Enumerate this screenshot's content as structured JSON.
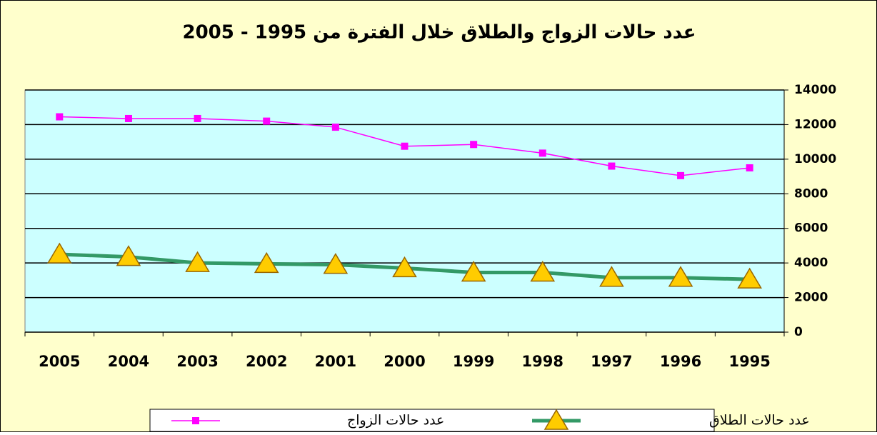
{
  "chart_data": {
    "type": "line",
    "title": "عدد حالات الزواج والطلاق خلال الفترة من 1995 - 2005",
    "categories": [
      "2005",
      "2004",
      "2003",
      "2002",
      "2001",
      "2000",
      "1999",
      "1998",
      "1997",
      "1996",
      "1995"
    ],
    "series": [
      {
        "name": "عدد حالات الزواج",
        "color": "#ff00ff",
        "marker": "square",
        "values": [
          12450,
          12350,
          12350,
          12200,
          11850,
          10750,
          10850,
          10350,
          9600,
          9050,
          9500
        ]
      },
      {
        "name": "عدد حالات الطلاق",
        "color": "#339966",
        "marker": "triangle",
        "values": [
          4500,
          4350,
          4000,
          3950,
          3900,
          3700,
          3450,
          3450,
          3150,
          3150,
          3050
        ]
      }
    ],
    "ylim": [
      0,
      14000
    ],
    "yticks": [
      0,
      2000,
      4000,
      6000,
      8000,
      10000,
      12000,
      14000
    ],
    "grid": true,
    "legend": "bottom"
  }
}
